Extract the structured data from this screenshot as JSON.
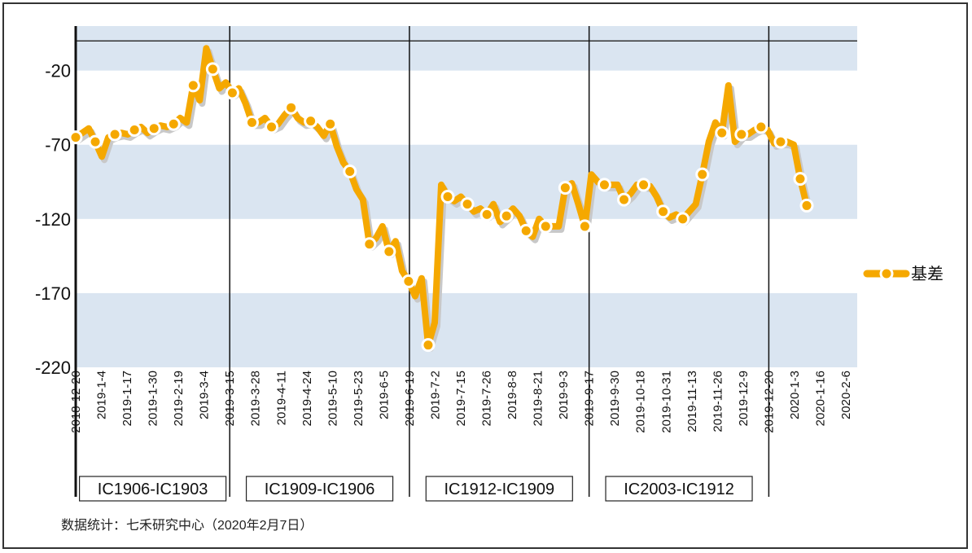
{
  "chart_data": {
    "type": "line",
    "title": "",
    "xlabel": "",
    "ylabel": "",
    "ylim": [
      -220,
      10
    ],
    "yticks": [
      -20,
      -70,
      -120,
      -170,
      -220
    ],
    "xtick_labels": [
      "2018-12-20",
      "2019-1-4",
      "2019-1-17",
      "2019-1-30",
      "2019-2-19",
      "2019-3-4",
      "2019-3-15",
      "2019-3-28",
      "2019-4-11",
      "2019-4-24",
      "2019-5-10",
      "2019-5-23",
      "2019-6-5",
      "2019-6-19",
      "2019-7-2",
      "2019-7-15",
      "2019-7-26",
      "2019-8-8",
      "2019-8-21",
      "2019-9-3",
      "2019-9-17",
      "2019-9-30",
      "2019-10-18",
      "2019-10-31",
      "2019-11-13",
      "2019-11-26",
      "2019-12-9",
      "2019-12-20",
      "2020-1-3",
      "2020-1-16",
      "2020-2-6"
    ],
    "reference_line_y": 0,
    "contract_dividers_at": [
      "2018-12-20",
      "2019-3-15",
      "2019-6-19",
      "2019-9-17",
      "2019-12-20"
    ],
    "contract_periods": [
      "IC1906-IC1903",
      "IC1909-IC1906",
      "IC1912-IC1909",
      "IC2003-IC1912"
    ],
    "grid": "horizontal bands",
    "legend_position": "right",
    "series": [
      {
        "name": "基差",
        "color": "#f5a800",
        "values": [
          -65,
          -62,
          -59,
          -68,
          -78,
          -65,
          -63,
          -62,
          -63,
          -60,
          -58,
          -62,
          -59,
          -57,
          -58,
          -56,
          -52,
          -55,
          -30,
          -40,
          -5,
          -19,
          -32,
          -28,
          -35,
          -32,
          -42,
          -55,
          -55,
          -52,
          -58,
          -56,
          -50,
          -45,
          -52,
          -55,
          -54,
          -58,
          -64,
          -56,
          -71,
          -82,
          -88,
          -100,
          -107,
          -137,
          -133,
          -125,
          -142,
          -135,
          -155,
          -162,
          -172,
          -160,
          -205,
          -190,
          -97,
          -105,
          -108,
          -105,
          -110,
          -115,
          -113,
          -117,
          -110,
          -122,
          -118,
          -113,
          -118,
          -128,
          -132,
          -120,
          -125,
          -125,
          -125,
          -99,
          -96,
          -110,
          -125,
          -90,
          -95,
          -97,
          -97,
          -97,
          -107,
          -103,
          -97,
          -97,
          -98,
          -105,
          -115,
          -119,
          -117,
          -120,
          -115,
          -110,
          -90,
          -68,
          -55,
          -62,
          -30,
          -68,
          -63,
          -63,
          -60,
          -58,
          -60,
          -69,
          -68,
          -68,
          -70,
          -93,
          -111
        ]
      }
    ]
  },
  "legend": {
    "label": "基差"
  },
  "source_note": "数据统计：七禾研究中心（2020年2月7日）"
}
